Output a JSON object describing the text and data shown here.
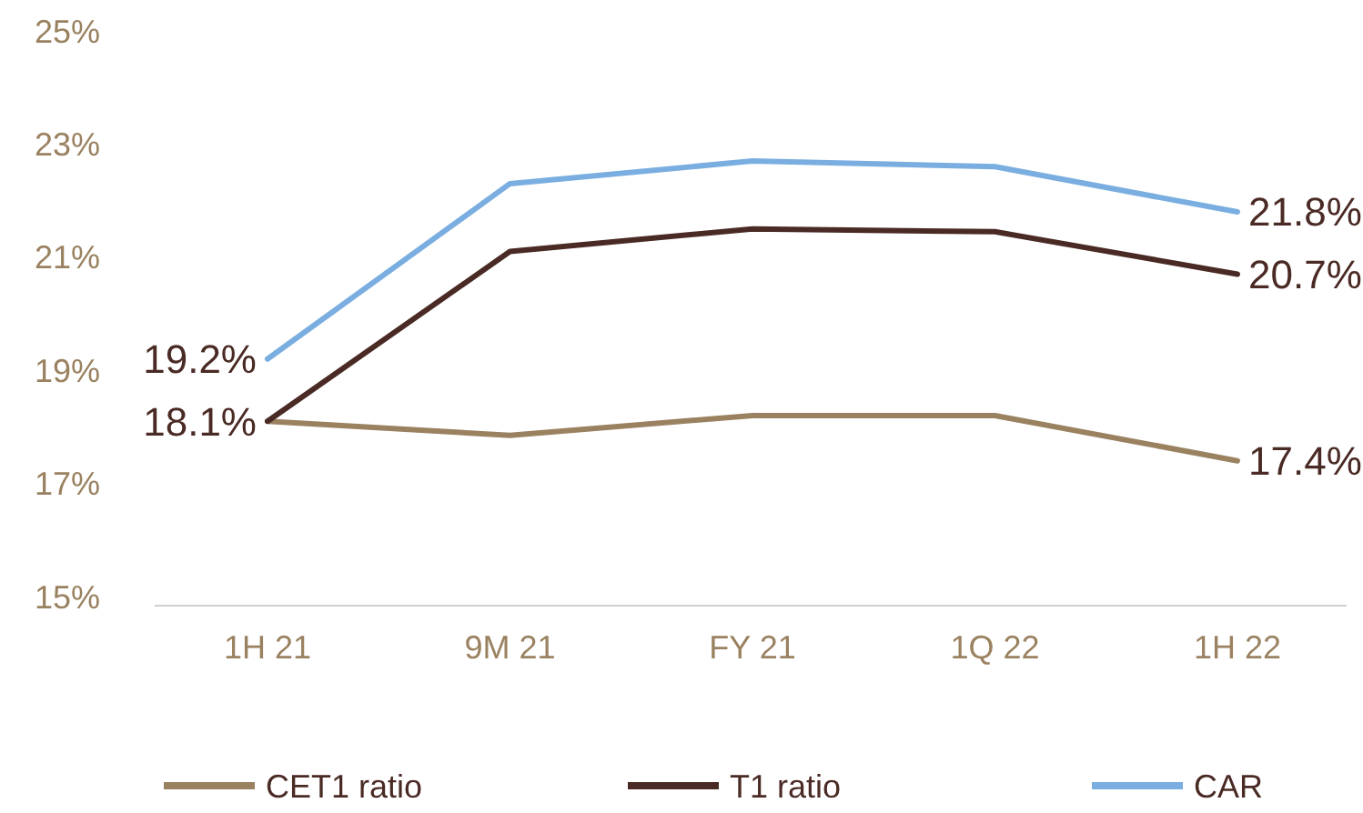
{
  "chart_data": {
    "type": "line",
    "categories": [
      "1H 21",
      "9M 21",
      "FY 21",
      "1Q 22",
      "1H 22"
    ],
    "ylim": [
      15,
      25
    ],
    "yticks": [
      {
        "value": 15,
        "label": "15%"
      },
      {
        "value": 17,
        "label": "17%"
      },
      {
        "value": 19,
        "label": "19%"
      },
      {
        "value": 21,
        "label": "21%"
      },
      {
        "value": 23,
        "label": "23%"
      },
      {
        "value": 25,
        "label": "25%"
      }
    ],
    "grid": false,
    "legend": "bottom",
    "marker": "none",
    "line_style": "solid",
    "series": [
      {
        "name": "CET1 ratio",
        "color": "#9a8261",
        "values": [
          18.1,
          17.85,
          18.2,
          18.2,
          17.4
        ],
        "value_labels": [
          null,
          null,
          null,
          null,
          "17.4%"
        ]
      },
      {
        "name": "T1 ratio",
        "color": "#4a2a24",
        "values": [
          18.1,
          21.1,
          21.5,
          21.45,
          20.7
        ],
        "value_labels": [
          "18.1%",
          null,
          null,
          null,
          "20.7%"
        ]
      },
      {
        "name": "CAR",
        "color": "#7aaee0",
        "values": [
          19.2,
          22.3,
          22.7,
          22.6,
          21.8
        ],
        "value_labels": [
          "19.2%",
          null,
          null,
          null,
          "21.8%"
        ]
      }
    ]
  }
}
